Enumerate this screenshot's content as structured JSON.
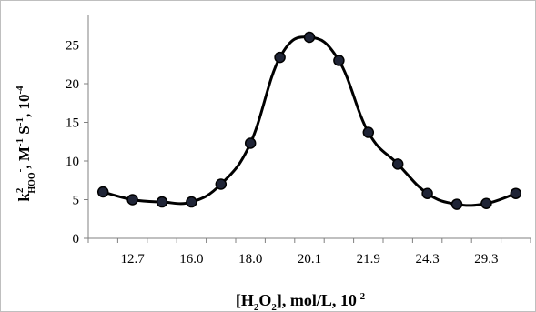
{
  "chart_data": {
    "type": "line",
    "title": "",
    "xlabel": {
      "main": "[H",
      "sub1": "2",
      "mid": "O",
      "sub2": "2",
      "tail": "], mol/L, 10",
      "sup": "-2"
    },
    "ylabel": {
      "main": "k",
      "sup1": "2",
      "sub1": "HOO",
      "sup2": "-",
      "mid": ", M",
      "sup3": "-1",
      "mid2": " S",
      "sup4": "-1",
      "tail": ", 10",
      "sup5": "-4"
    },
    "x_tick_labels": [
      "12.7",
      "16.0",
      "18.0",
      "20.1",
      "21.9",
      "24.3",
      "29.3"
    ],
    "ylim": [
      0,
      25
    ],
    "yticks": [
      0,
      5,
      10,
      15,
      20,
      25
    ],
    "grid": false,
    "legend": "none",
    "marker": "circle",
    "smooth": true,
    "series": [
      {
        "values": [
          6.0,
          5.0,
          4.7,
          4.7,
          7.0,
          12.3,
          23.4,
          26.0,
          23.0,
          13.7,
          9.6,
          5.8,
          4.4,
          4.5,
          5.8
        ]
      }
    ],
    "colors": {
      "line": "#000000",
      "marker_fill": "#1f2436",
      "marker_stroke": "#000000",
      "axis": "#808080"
    }
  }
}
